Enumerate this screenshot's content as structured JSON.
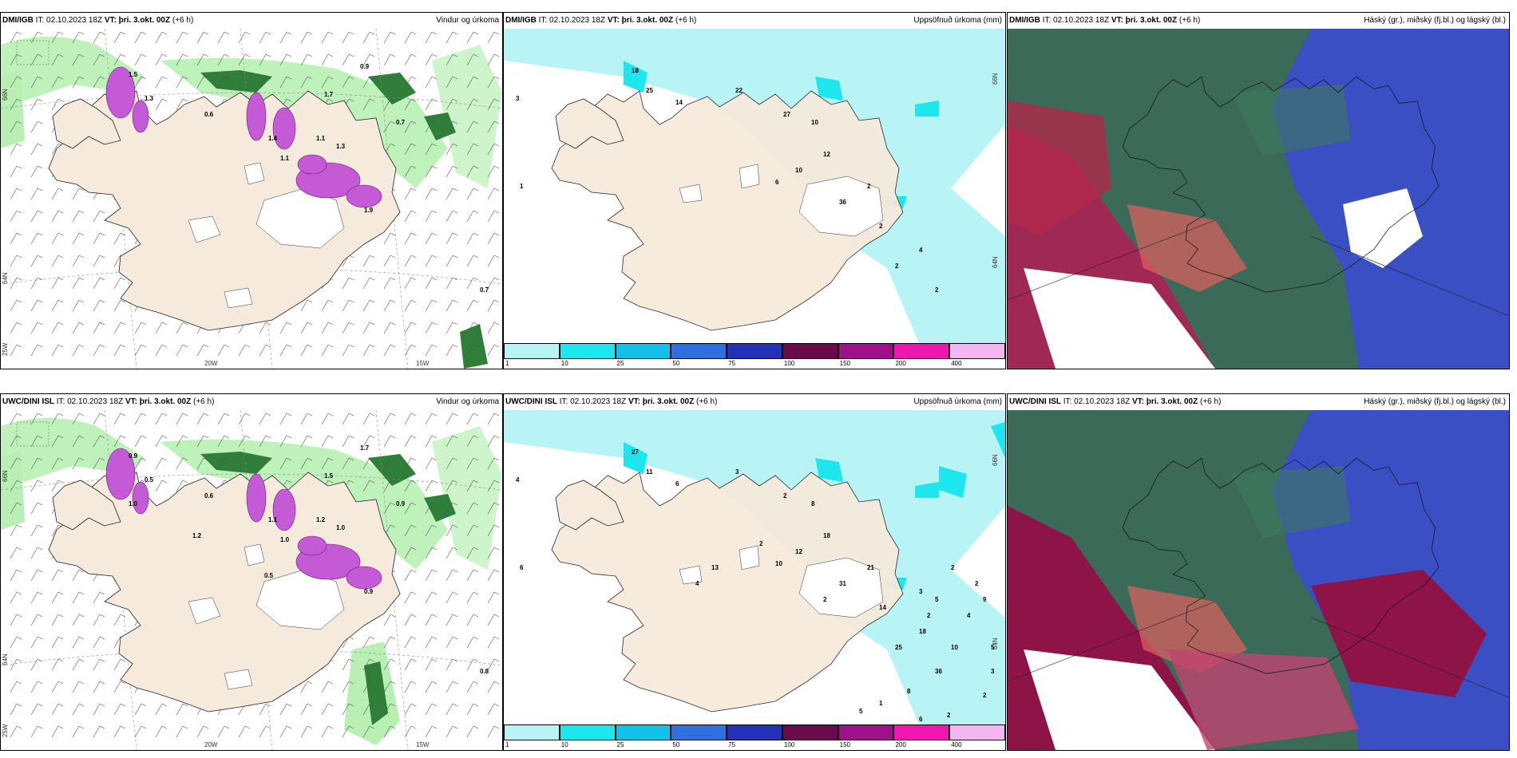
{
  "panels": {
    "p1": {
      "model": "DMI/IGB",
      "it_label": "IT:",
      "it": "02.10.2023 18Z",
      "vt_label": "VT:",
      "vt": "þri. 3.okt. 00Z",
      "lead": "(+6 h)",
      "product": "Vindur og úrkoma"
    },
    "p2": {
      "model": "DMI/IGB",
      "it_label": "IT:",
      "it": "02.10.2023 18Z",
      "vt_label": "VT:",
      "vt": "þri. 3.okt. 00Z",
      "lead": "(+6 h)",
      "product": "Uppsöfnuð úrkoma (mm)"
    },
    "p3": {
      "model": "DMI/IGB",
      "it_label": "IT:",
      "it": "02.10.2023 18Z",
      "vt_label": "VT:",
      "vt": "þri. 3.okt. 00Z",
      "lead": "(+6 h)",
      "product": "Háský (gr.), miðský (fj.bl.) og lágský (bl.)"
    },
    "p4": {
      "model": "UWC/DINI ISL",
      "it_label": "IT:",
      "it": "02.10.2023 18Z",
      "vt_label": "VT:",
      "vt": "þri. 3.okt. 00Z",
      "lead": "(+6 h)",
      "product": "Vindur og úrkoma"
    },
    "p5": {
      "model": "UWC/DINI ISL",
      "it_label": "IT:",
      "it": "02.10.2023 18Z",
      "vt_label": "VT:",
      "vt": "þri. 3.okt. 00Z",
      "lead": "(+6 h)",
      "product": "Uppsöfnuð úrkoma (mm)"
    },
    "p6": {
      "model": "UWC/DINI ISL",
      "it_label": "IT:",
      "it": "02.10.2023 18Z",
      "vt_label": "VT:",
      "vt": "þri. 3.okt. 00Z",
      "lead": "(+6 h)",
      "product": "Háský (gr.), miðský (fj.bl.) og lágský (bl.)"
    }
  },
  "axes": {
    "lon1": "20W",
    "lon2": "15W",
    "lon3": "25W",
    "lat1": "66N",
    "lat2": "64N"
  },
  "colorbar": {
    "ticks": [
      "1",
      "10",
      "25",
      "50",
      "75",
      "100",
      "150",
      "200",
      "400"
    ],
    "colors": [
      "#b8f4f6",
      "#1ee6ee",
      "#14c0ea",
      "#2f6fe0",
      "#2430b8",
      "#6a0a4a",
      "#a01088",
      "#ee18b0",
      "#f4b6f0"
    ]
  },
  "precip_values_top": [
    "3",
    "1",
    "18",
    "25",
    "14",
    "22",
    "27",
    "10",
    "10",
    "6",
    "12",
    "36",
    "2",
    "2",
    "2",
    "4",
    "2"
  ],
  "precip_values_bottom": [
    "4",
    "6",
    "27",
    "11",
    "6",
    "3",
    "2",
    "8",
    "12",
    "10",
    "18",
    "31",
    "21",
    "14",
    "25",
    "18",
    "36",
    "10",
    "4",
    "9",
    "8",
    "1",
    "5",
    "6",
    "2",
    "2",
    "3",
    "5",
    "2",
    "2",
    "5",
    "2",
    "3",
    "2",
    "2",
    "13",
    "4"
  ],
  "wind_values_top": [
    "1.5",
    "1.3",
    "0.6",
    "1.4",
    "1.3",
    "1.9",
    "1.7",
    "0.9",
    "1.1",
    "0.7",
    "0.7",
    "1.1"
  ],
  "wind_values_bottom": [
    "0.9",
    "0.5",
    "0.6",
    "1.1",
    "1.0",
    "0.9",
    "1.5",
    "1.7",
    "1.2",
    "0.8",
    "0.9",
    "1.0",
    "0.5",
    "1.2",
    "1.0"
  ],
  "colors": {
    "land": "#f6eadc",
    "sea": "#ffffff",
    "green_light": "#b8f0b4",
    "green_dark": "#2f7f3a",
    "magenta": "#c45ad6",
    "cloud_high": "#3b6b58",
    "cloud_mid": "#3b4fc4",
    "cloud_low": "#8e1447"
  }
}
